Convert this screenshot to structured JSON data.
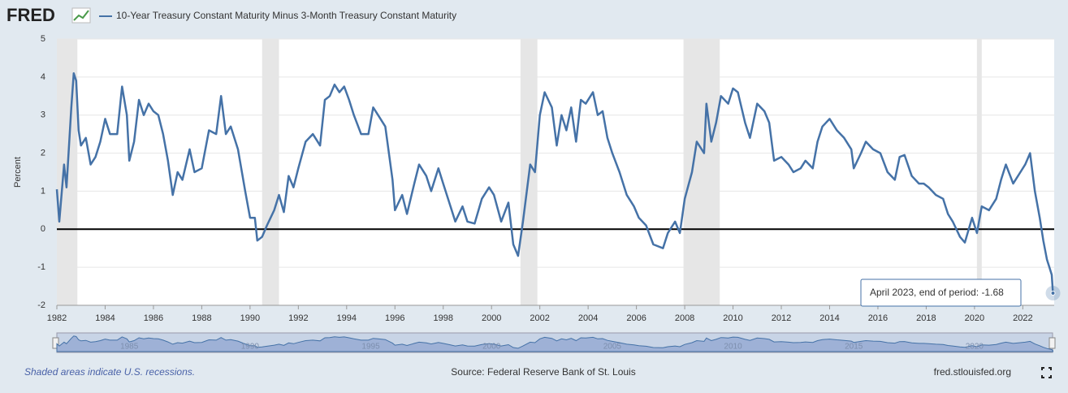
{
  "logo": "FRED",
  "chart_data": {
    "type": "line",
    "series": [
      {
        "name": "10-Year Treasury Constant Maturity Minus 3-Month Treasury Constant Maturity",
        "color": "#4572a7",
        "x": [
          1982.0,
          1982.1,
          1982.3,
          1982.4,
          1982.6,
          1982.7,
          1982.8,
          1982.9,
          1983.0,
          1983.2,
          1983.4,
          1983.6,
          1983.8,
          1984.0,
          1984.2,
          1984.5,
          1984.7,
          1984.9,
          1985.0,
          1985.2,
          1985.4,
          1985.6,
          1985.8,
          1986.0,
          1986.2,
          1986.4,
          1986.6,
          1986.8,
          1987.0,
          1987.2,
          1987.5,
          1987.7,
          1988.0,
          1988.3,
          1988.6,
          1988.8,
          1989.0,
          1989.2,
          1989.5,
          1989.8,
          1990.0,
          1990.2,
          1990.3,
          1990.5,
          1990.7,
          1991.0,
          1991.2,
          1991.4,
          1991.6,
          1991.8,
          1992.0,
          1992.3,
          1992.6,
          1992.9,
          1993.1,
          1993.3,
          1993.5,
          1993.7,
          1993.9,
          1994.1,
          1994.3,
          1994.6,
          1994.9,
          1995.1,
          1995.3,
          1995.6,
          1995.9,
          1996.0,
          1996.3,
          1996.5,
          1996.8,
          1997.0,
          1997.3,
          1997.5,
          1997.8,
          1998.0,
          1998.3,
          1998.5,
          1998.8,
          1999.0,
          1999.3,
          1999.6,
          1999.9,
          2000.1,
          2000.4,
          2000.7,
          2000.9,
          2001.1,
          2001.3,
          2001.6,
          2001.8,
          2002.0,
          2002.2,
          2002.5,
          2002.7,
          2002.9,
          2003.1,
          2003.3,
          2003.5,
          2003.7,
          2003.9,
          2004.2,
          2004.4,
          2004.6,
          2004.8,
          2005.0,
          2005.3,
          2005.6,
          2005.9,
          2006.1,
          2006.4,
          2006.7,
          2006.9,
          2007.1,
          2007.3,
          2007.6,
          2007.8,
          2008.0,
          2008.3,
          2008.5,
          2008.8,
          2008.9,
          2009.1,
          2009.3,
          2009.5,
          2009.8,
          2010.0,
          2010.2,
          2010.5,
          2010.7,
          2011.0,
          2011.3,
          2011.5,
          2011.7,
          2012.0,
          2012.3,
          2012.5,
          2012.8,
          2013.0,
          2013.3,
          2013.5,
          2013.7,
          2014.0,
          2014.3,
          2014.6,
          2014.9,
          2015.0,
          2015.3,
          2015.5,
          2015.8,
          2016.1,
          2016.4,
          2016.7,
          2016.9,
          2017.1,
          2017.4,
          2017.7,
          2017.9,
          2018.1,
          2018.4,
          2018.7,
          2018.9,
          2019.1,
          2019.4,
          2019.6,
          2019.9,
          2020.1,
          2020.3,
          2020.6,
          2020.9,
          2021.1,
          2021.3,
          2021.6,
          2021.9,
          2022.1,
          2022.3,
          2022.5,
          2022.7,
          2022.85,
          2023.0,
          2023.1,
          2023.2,
          2023.25
        ],
        "values": [
          1.05,
          0.2,
          1.7,
          1.1,
          3.2,
          4.1,
          3.9,
          2.6,
          2.2,
          2.4,
          1.7,
          1.9,
          2.3,
          2.9,
          2.5,
          2.5,
          3.75,
          3.0,
          1.8,
          2.3,
          3.4,
          3.0,
          3.3,
          3.1,
          3.0,
          2.5,
          1.8,
          0.9,
          1.5,
          1.3,
          2.1,
          1.5,
          1.6,
          2.6,
          2.5,
          3.5,
          2.5,
          2.7,
          2.1,
          1.0,
          0.3,
          0.3,
          -0.3,
          -0.2,
          0.1,
          0.5,
          0.9,
          0.45,
          1.4,
          1.1,
          1.6,
          2.3,
          2.5,
          2.2,
          3.4,
          3.5,
          3.8,
          3.6,
          3.75,
          3.4,
          3.0,
          2.5,
          2.5,
          3.2,
          3.0,
          2.7,
          1.3,
          0.5,
          0.9,
          0.4,
          1.2,
          1.7,
          1.4,
          1.0,
          1.6,
          1.2,
          0.6,
          0.2,
          0.6,
          0.2,
          0.15,
          0.8,
          1.1,
          0.9,
          0.2,
          0.7,
          -0.4,
          -0.7,
          0.2,
          1.7,
          1.5,
          3.0,
          3.6,
          3.2,
          2.2,
          3.0,
          2.6,
          3.2,
          2.3,
          3.4,
          3.3,
          3.6,
          3.0,
          3.1,
          2.4,
          2.0,
          1.5,
          0.9,
          0.6,
          0.3,
          0.1,
          -0.4,
          -0.45,
          -0.5,
          -0.1,
          0.2,
          -0.1,
          0.8,
          1.5,
          2.3,
          2.0,
          3.3,
          2.3,
          2.8,
          3.5,
          3.3,
          3.7,
          3.6,
          2.8,
          2.4,
          3.3,
          3.1,
          2.8,
          1.8,
          1.9,
          1.7,
          1.5,
          1.6,
          1.8,
          1.6,
          2.3,
          2.7,
          2.9,
          2.6,
          2.4,
          2.1,
          1.6,
          2.0,
          2.3,
          2.1,
          2.0,
          1.5,
          1.3,
          1.9,
          1.95,
          1.4,
          1.2,
          1.2,
          1.1,
          0.9,
          0.8,
          0.4,
          0.2,
          -0.2,
          -0.35,
          0.3,
          -0.1,
          0.6,
          0.5,
          0.8,
          1.3,
          1.7,
          1.2,
          1.5,
          1.7,
          2.0,
          1.0,
          0.3,
          -0.3,
          -0.8,
          -1.0,
          -1.2,
          -1.68
        ]
      }
    ],
    "ylabel": "Percent",
    "xlim": [
      1982,
      2023.3
    ],
    "ylim": [
      -2,
      5
    ],
    "xticks": [
      1982,
      1984,
      1986,
      1988,
      1990,
      1992,
      1994,
      1996,
      1998,
      2000,
      2002,
      2004,
      2006,
      2008,
      2010,
      2012,
      2014,
      2016,
      2018,
      2020,
      2022
    ],
    "yticks": [
      -2,
      -1,
      0,
      1,
      2,
      3,
      4,
      5
    ],
    "grid": true,
    "recessions": [
      [
        1982,
        1982.85
      ],
      [
        1990.5,
        1991.2
      ],
      [
        2001.2,
        2001.9
      ],
      [
        2007.95,
        2009.45
      ],
      [
        2020.1,
        2020.3
      ]
    ],
    "recession_color": "#e6e6e6",
    "navigator_ticks": [
      1985,
      1990,
      1995,
      2000,
      2005,
      2010,
      2015,
      2020
    ],
    "tooltip": {
      "label": "April 2023, end of period:"
    }
  },
  "footer": {
    "note": "Shaded areas indicate U.S. recessions.",
    "source": "Source: Federal Reserve Bank of St. Louis",
    "url": "fred.stlouisfed.org"
  }
}
